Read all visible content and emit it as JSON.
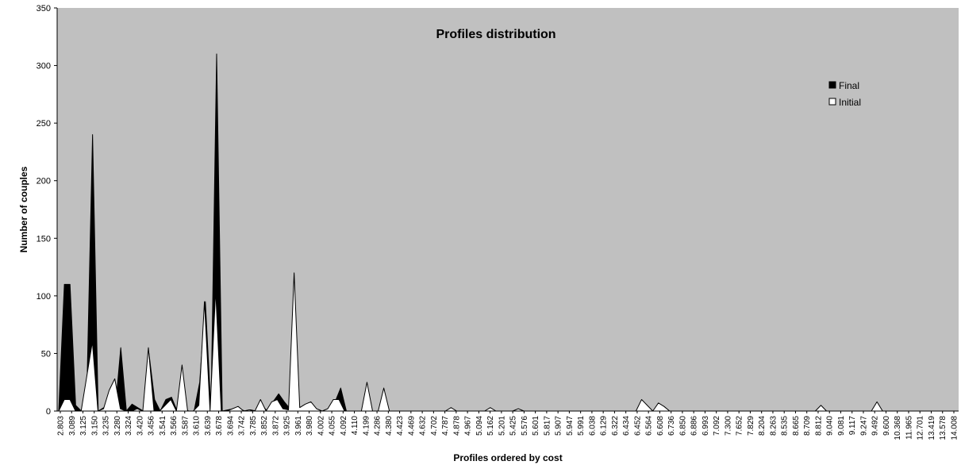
{
  "chart_data": {
    "type": "area",
    "title": "Profiles distribution",
    "xlabel": "Profiles ordered by cost",
    "ylabel": "Number of couples",
    "ylim": [
      0,
      350
    ],
    "yticks": [
      0,
      50,
      100,
      150,
      200,
      250,
      300,
      350
    ],
    "grid": false,
    "legend_position": "top-right",
    "plot_background": "#c0c0c0",
    "x_tick_labels": [
      "2.803",
      "3.089",
      "3.125",
      "3.150",
      "3.235",
      "3.280",
      "3.324",
      "3.420",
      "3.456",
      "3.541",
      "3.566",
      "3.587",
      "3.610",
      "3.639",
      "3.678",
      "3.694",
      "3.742",
      "3.785",
      "3.852",
      "3.872",
      "3.925",
      "3.961",
      "3.980",
      "4.002",
      "4.055",
      "4.092",
      "4.110",
      "4.199",
      "4.286",
      "4.380",
      "4.423",
      "4.469",
      "4.632",
      "4.702",
      "4.787",
      "4.878",
      "4.967",
      "5.094",
      "5.162",
      "5.201",
      "5.425",
      "5.576",
      "5.601",
      "5.817",
      "5.907",
      "5.947",
      "5.991",
      "6.038",
      "6.129",
      "6.322",
      "6.434",
      "6.452",
      "6.564",
      "6.608",
      "6.736",
      "6.850",
      "6.886",
      "6.993",
      "7.092",
      "7.300",
      "7.652",
      "7.829",
      "8.204",
      "8.263",
      "8.535",
      "8.665",
      "8.709",
      "8.812",
      "9.040",
      "9.081",
      "9.117",
      "9.247",
      "9.492",
      "9.600",
      "10.368",
      "11.965",
      "12.701",
      "13.419",
      "13.578",
      "14.008"
    ],
    "series": [
      {
        "name": "Final",
        "color": "#000000",
        "values": [
          0,
          110,
          110,
          5,
          0,
          20,
          240,
          0,
          3,
          5,
          0,
          55,
          0,
          6,
          3,
          0,
          50,
          10,
          0,
          10,
          12,
          0,
          5,
          0,
          0,
          25,
          95,
          0,
          310,
          0,
          1,
          2,
          2,
          0,
          1,
          0,
          5,
          0,
          8,
          15,
          8,
          2,
          0,
          0,
          0,
          0,
          0,
          0,
          0,
          8,
          20,
          0,
          0,
          0,
          0,
          0,
          0,
          0,
          0,
          0,
          0,
          0,
          0,
          0,
          0,
          0,
          0,
          0,
          0,
          0,
          0,
          0,
          0,
          0,
          0,
          0,
          0,
          0,
          0,
          0,
          0,
          0,
          0,
          0,
          0,
          0,
          0,
          0,
          0,
          0,
          0,
          0,
          0,
          0,
          0,
          0,
          0,
          0,
          0,
          0,
          0,
          0,
          0,
          0,
          0,
          0,
          0,
          0,
          0,
          0,
          0,
          0,
          0,
          0,
          0,
          0,
          0,
          0,
          0,
          0,
          0,
          0,
          0,
          0,
          0,
          0,
          0,
          0,
          0,
          0,
          0,
          0,
          0,
          0,
          0,
          0,
          0,
          0,
          0,
          0,
          0,
          0,
          0,
          0,
          0,
          0,
          0,
          0,
          0,
          0,
          0,
          0,
          0,
          0,
          0,
          0,
          0,
          0,
          0,
          0
        ]
      },
      {
        "name": "Initial",
        "color": "#ffffff",
        "values": [
          0,
          10,
          10,
          0,
          0,
          30,
          60,
          0,
          2,
          18,
          28,
          2,
          0,
          0,
          2,
          0,
          55,
          0,
          0,
          5,
          10,
          0,
          40,
          0,
          0,
          5,
          95,
          0,
          105,
          0,
          0,
          2,
          4,
          0,
          1,
          0,
          10,
          0,
          8,
          10,
          2,
          1,
          120,
          3,
          6,
          8,
          2,
          0,
          2,
          10,
          10,
          0,
          0,
          0,
          0,
          25,
          0,
          0,
          20,
          0,
          0,
          0,
          0,
          0,
          0,
          0,
          0,
          0,
          0,
          0,
          3,
          0,
          0,
          0,
          0,
          0,
          0,
          3,
          0,
          0,
          0,
          0,
          2,
          0,
          0,
          0,
          0,
          0,
          0,
          0,
          0,
          0,
          0,
          0,
          0,
          0,
          0,
          0,
          0,
          0,
          0,
          0,
          0,
          0,
          10,
          5,
          0,
          7,
          4,
          0,
          0,
          0,
          0,
          0,
          0,
          0,
          0,
          0,
          0,
          0,
          0,
          0,
          0,
          0,
          0,
          0,
          0,
          0,
          0,
          0,
          0,
          0,
          0,
          0,
          0,
          0,
          5,
          0,
          0,
          0,
          0,
          0,
          0,
          0,
          0,
          0,
          8,
          0,
          0,
          0,
          0,
          0,
          0,
          0,
          0,
          0,
          0,
          0,
          0,
          0,
          0
        ]
      }
    ]
  }
}
